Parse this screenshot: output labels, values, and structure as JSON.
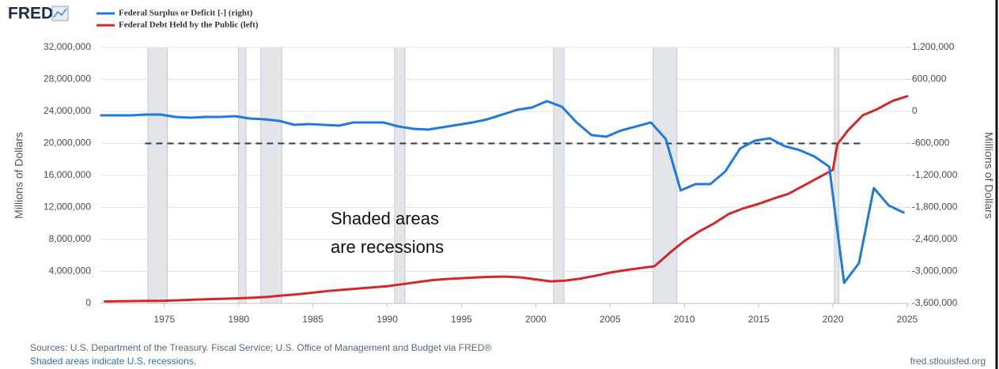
{
  "chart_data": {
    "type": "line",
    "logo": "FRED",
    "ylabel": "Millions of Dollars",
    "y2label": "Millions of Dollars",
    "sources": "Sources: U.S. Department of the Treasury. Fiscal Service; U.S. Office of Management and Budget via FRED®",
    "note": "Shaded areas indicate U.S. recessions.",
    "source_url": "fred.stlouisfed.org",
    "annotation": [
      "Shaded areas",
      "are recessions"
    ],
    "xlim": [
      1970.7,
      2025.0
    ],
    "xticks": [
      1975,
      1980,
      1985,
      1990,
      1995,
      2000,
      2005,
      2010,
      2015,
      2020,
      2025
    ],
    "ylim": [
      0,
      32000000
    ],
    "yticks": [
      0,
      {
        "value": 4000000,
        "label": "4,000,000"
      },
      {
        "value": 8000000,
        "label": "8,000,000"
      },
      {
        "value": 12000000,
        "label": "12,000,000"
      },
      {
        "value": 16000000,
        "label": "16,000,000"
      },
      {
        "value": 20000000,
        "label": "20,000,000"
      },
      {
        "value": 24000000,
        "label": "24,000,000"
      },
      {
        "value": 28000000,
        "label": "28,000,000"
      },
      {
        "value": 32000000,
        "label": "32,000,000"
      }
    ],
    "y2lim": [
      -3600000,
      1200000
    ],
    "y2ticks": [
      {
        "value": -3600000,
        "label": "-3,600,000"
      },
      {
        "value": -3000000,
        "label": "-3,000,000"
      },
      {
        "value": -2400000,
        "label": "-2,400,000"
      },
      {
        "value": -1800000,
        "label": "-1,800,000"
      },
      {
        "value": -1200000,
        "label": "-1,200,000"
      },
      {
        "value": -600000,
        "label": "-600,000"
      },
      0,
      {
        "value": 600000,
        "label": "600,000"
      },
      {
        "value": 1200000,
        "label": "1,200,000"
      }
    ],
    "grid": true,
    "recessions": [
      [
        1973.9,
        1975.2
      ],
      [
        1980.0,
        1980.5
      ],
      [
        1981.5,
        1982.9
      ],
      [
        1990.5,
        1991.2
      ],
      [
        2001.2,
        2001.9
      ],
      [
        2007.9,
        2009.5
      ],
      [
        2020.1,
        2020.4
      ]
    ],
    "reference_line": {
      "axis": "y2",
      "value": -600000,
      "x": [
        1973.7,
        2022.0
      ]
    },
    "series": [
      {
        "name": "Federal Surplus or Deficit [-] (right)",
        "color": "#1f7ae0",
        "axis": "y2",
        "x": [
          1970.75,
          1971.75,
          1972.75,
          1973.75,
          1974.75,
          1975.75,
          1976.75,
          1977.75,
          1978.75,
          1979.75,
          1980.75,
          1981.75,
          1982.75,
          1983.75,
          1984.75,
          1985.75,
          1986.75,
          1987.75,
          1988.75,
          1989.75,
          1990.75,
          1991.75,
          1992.75,
          1993.75,
          1994.75,
          1995.75,
          1996.75,
          1997.75,
          1998.75,
          1999.75,
          2000.75,
          2001.75,
          2002.75,
          2003.75,
          2004.75,
          2005.75,
          2006.75,
          2007.75,
          2008.75,
          2009.75,
          2010.75,
          2011.75,
          2012.75,
          2013.75,
          2014.75,
          2015.75,
          2016.75,
          2017.75,
          2018.75,
          2019.75,
          2020.75,
          2021.75,
          2022.75,
          2023.75,
          2024.75
        ],
        "values": [
          -74000,
          -74000,
          -74000,
          -59000,
          -59000,
          -104000,
          -119000,
          -104000,
          -104000,
          -89000,
          -133000,
          -148000,
          -178000,
          -252000,
          -237000,
          -252000,
          -267000,
          -207000,
          -207000,
          -207000,
          -282000,
          -326000,
          -341000,
          -296000,
          -252000,
          -207000,
          -148000,
          -59000,
          30000,
          74000,
          193000,
          89000,
          -207000,
          -444000,
          -474000,
          -356000,
          -282000,
          -207000,
          -519000,
          -1482000,
          -1363000,
          -1363000,
          -1126000,
          -696000,
          -548000,
          -504000,
          -652000,
          -726000,
          -844000,
          -1037000,
          -3215000,
          -2844000,
          -1437000,
          -1763000,
          -1896000
        ]
      },
      {
        "name": "Federal Debt Held by the Public (left)",
        "color": "#d62728",
        "x": [
          1971,
          1972,
          1973,
          1974,
          1975,
          1976,
          1977,
          1978,
          1979,
          1980,
          1981,
          1982,
          1983,
          1984,
          1985,
          1986,
          1987,
          1988,
          1989,
          1990,
          1991,
          1992,
          1993,
          1994,
          1995,
          1996,
          1997,
          1998,
          1999,
          2000,
          2001,
          2002,
          2003,
          2004,
          2005,
          2006,
          2007,
          2008,
          2009,
          2010,
          2011,
          2012,
          2013,
          2014,
          2015,
          2016,
          2017,
          2018,
          2019,
          2020,
          2020.3,
          2021,
          2022,
          2023,
          2024,
          2025
        ],
        "values": [
          250000,
          270000,
          300000,
          320000,
          330000,
          400000,
          470000,
          530000,
          580000,
          640000,
          720000,
          830000,
          1000000,
          1150000,
          1350000,
          1550000,
          1700000,
          1850000,
          2000000,
          2150000,
          2400000,
          2650000,
          2900000,
          3050000,
          3150000,
          3250000,
          3320000,
          3350000,
          3250000,
          3000000,
          2750000,
          2850000,
          3100000,
          3450000,
          3850000,
          4150000,
          4400000,
          4650000,
          6300000,
          7800000,
          9000000,
          10000000,
          11200000,
          11900000,
          12450000,
          13100000,
          13700000,
          14700000,
          15700000,
          16700000,
          19900000,
          21600000,
          23500000,
          24300000,
          25300000,
          25900000
        ]
      }
    ]
  }
}
